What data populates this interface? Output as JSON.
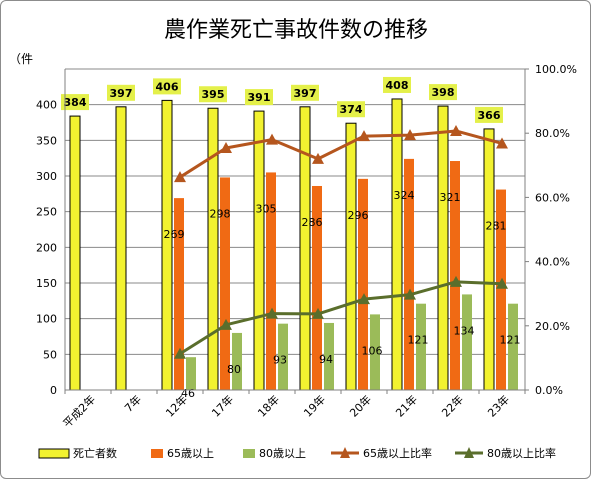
{
  "chart_data": {
    "type": "bar",
    "title": "農作業死亡事故件数の推移",
    "y_unit": "（件",
    "categories": [
      "平成2年",
      "7年",
      "12年",
      "17年",
      "18年",
      "19年",
      "20年",
      "21年",
      "22年",
      "23年"
    ],
    "ylim": [
      0,
      450
    ],
    "y2lim": [
      0,
      1.0
    ],
    "y_ticks": [
      "0",
      "50",
      "100",
      "150",
      "200",
      "250",
      "300",
      "350",
      "400"
    ],
    "y2_ticks": [
      "0.0%",
      "20.0%",
      "40.0%",
      "60.0%",
      "80.0%",
      "100.0%"
    ],
    "grid": true,
    "legend_position": "bottom",
    "series": [
      {
        "name": "死亡者数",
        "kind": "bar",
        "color": "#f2f230",
        "label_bg": "#e4f04a",
        "values": [
          384,
          397,
          406,
          395,
          391,
          397,
          374,
          408,
          398,
          366
        ]
      },
      {
        "name": "65歳以上",
        "kind": "bar",
        "color": "#f06a14",
        "values": [
          null,
          null,
          269,
          298,
          305,
          286,
          296,
          324,
          321,
          281
        ]
      },
      {
        "name": "80歳以上",
        "kind": "bar",
        "color": "#9bbb59",
        "values": [
          null,
          null,
          46,
          80,
          93,
          94,
          106,
          121,
          134,
          121
        ]
      },
      {
        "name": "65歳以上比率",
        "kind": "line",
        "axis": "right",
        "color": "#b5561e",
        "values": [
          null,
          null,
          0.663,
          0.754,
          0.78,
          0.72,
          0.791,
          0.794,
          0.807,
          0.768
        ]
      },
      {
        "name": "80歳以上比率",
        "kind": "line",
        "axis": "right",
        "color": "#5a6e2c",
        "values": [
          null,
          null,
          0.113,
          0.203,
          0.238,
          0.237,
          0.283,
          0.297,
          0.337,
          0.331
        ]
      }
    ]
  }
}
